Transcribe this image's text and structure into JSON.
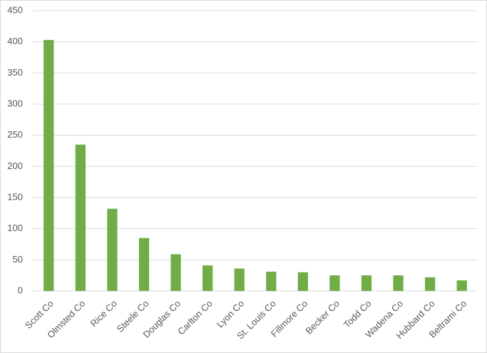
{
  "chart_data": {
    "type": "bar",
    "categories": [
      "Scott Co",
      "Olmsted Co",
      "Rice Co",
      "Steele Co",
      "Douglas Co",
      "Carlton Co",
      "Lyon Co",
      "St. Louis Co",
      "Fillmore Co",
      "Becker Co",
      "Todd Co",
      "Wadena Co",
      "Hubbard Co",
      "Beltrami Co"
    ],
    "values": [
      403,
      235,
      132,
      85,
      59,
      41,
      36,
      31,
      30,
      25,
      25,
      25,
      22,
      17
    ],
    "color": "#70ad47",
    "ylim": [
      0,
      450
    ],
    "yticks": [
      0,
      50,
      100,
      150,
      200,
      250,
      300,
      350,
      400,
      450
    ],
    "grid": true
  }
}
